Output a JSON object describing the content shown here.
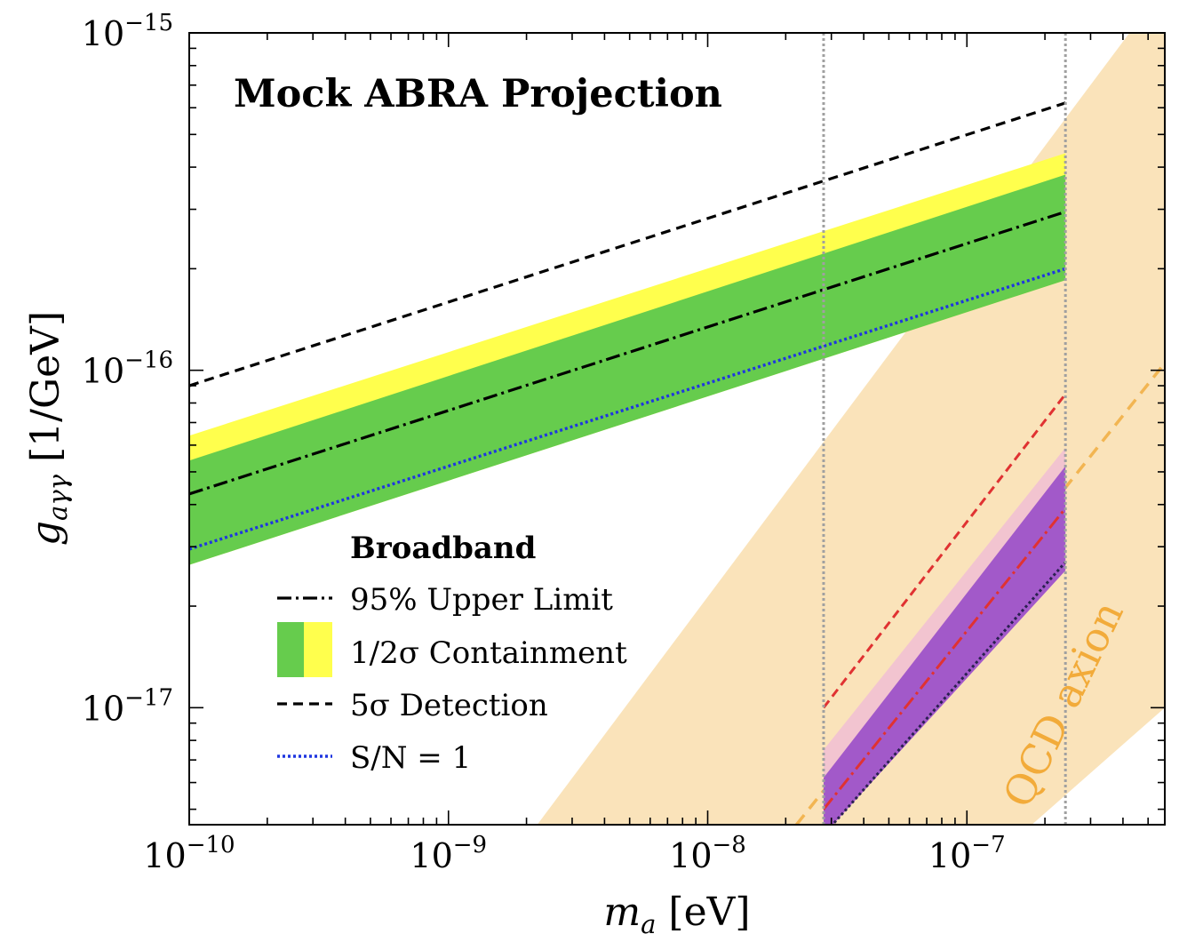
{
  "chart_data": {
    "type": "line",
    "title": "Mock ABRA Projection",
    "xlabel": "m_a [eV]",
    "ylabel": "g_aγγ [1/GeV]",
    "xscale": "log",
    "yscale": "log",
    "xlim": [
      1e-10,
      5.8e-07
    ],
    "ylim": [
      4.5e-18,
      1e-15
    ],
    "x_ticks": [
      {
        "value": 1e-10,
        "base": "10",
        "exp": "−10"
      },
      {
        "value": 1e-09,
        "base": "10",
        "exp": "−9"
      },
      {
        "value": 1e-08,
        "base": "10",
        "exp": "−8"
      },
      {
        "value": 1e-07,
        "base": "10",
        "exp": "−7"
      }
    ],
    "y_ticks": [
      {
        "value": 1e-17,
        "base": "10",
        "exp": "−17"
      },
      {
        "value": 1e-16,
        "base": "10",
        "exp": "−16"
      },
      {
        "value": 1e-15,
        "base": "10",
        "exp": "−15"
      }
    ],
    "legend": {
      "title": "Broadband",
      "placement": "lower-left",
      "entries": [
        {
          "label": "95% Upper Limit",
          "style": "dashdot",
          "color": "#000000"
        },
        {
          "label": "1/2σ Containment",
          "style": "band",
          "colors": [
            "#66cc4d",
            "#ffff4d"
          ]
        },
        {
          "label": "5σ Detection",
          "style": "dashed",
          "color": "#000000"
        },
        {
          "label": "S/N = 1",
          "style": "dotted",
          "color": "#1f36e0"
        }
      ]
    },
    "annotations": [
      {
        "text": "QCD axion",
        "color": "#f2ab3a"
      }
    ],
    "colors": {
      "qcd_band": "#fae3ba",
      "qcd_line": "#f2b552",
      "one_sigma": "#66cc4d",
      "two_sigma": "#ffff4d",
      "resonant_one_sigma": "#a259c9",
      "resonant_two_sigma": "#f2c4d0",
      "resonant_detection": "#e03232",
      "resonant_limit": "#e03232",
      "vline": "#a0a0a0"
    },
    "vertical_lines_x": [
      2.8e-08,
      2.4e-07
    ],
    "broadband": {
      "x": [
        1e-10,
        2.4e-07
      ],
      "upper_limit": [
        4.3e-17,
        2.95e-16
      ],
      "one_sigma_low": [
        2.65e-17,
        1.85e-16
      ],
      "one_sigma_high": [
        5.4e-17,
        3.8e-16
      ],
      "two_sigma_low": [
        2.65e-17,
        1.85e-16
      ],
      "two_sigma_high": [
        6.4e-17,
        4.4e-16
      ],
      "detection_5sigma": [
        9e-17,
        6.2e-16
      ],
      "sn_equals_1": [
        2.95e-17,
        2e-16
      ]
    },
    "resonant": {
      "x": [
        2.8e-08,
        2.4e-07
      ],
      "upper_limit": [
        5e-18,
        3.9e-17
      ],
      "one_sigma_low": [
        4.2e-18,
        2.55e-17
      ],
      "one_sigma_high": [
        6.2e-18,
        5.2e-17
      ],
      "two_sigma_low": [
        4.2e-18,
        2.55e-17
      ],
      "two_sigma_high": [
        7.5e-18,
        5.9e-17
      ],
      "detection_5sigma": [
        1e-17,
        8.5e-17
      ],
      "sn_equals_1": [
        4.2e-18,
        2.7e-17
      ]
    },
    "qcd_axion": {
      "band_left": [
        [
          2.2e-09,
          4.5e-18
        ],
        [
          5.8e-07,
          1.38e-15
        ]
      ],
      "band_right": [
        [
          5.8e-07,
          1e-17
        ],
        [
          1.78e-07,
          4.5e-18
        ]
      ],
      "center_line": [
        [
          2.2e-08,
          4.5e-18
        ],
        [
          5.8e-07,
          1.05e-16
        ]
      ]
    }
  }
}
